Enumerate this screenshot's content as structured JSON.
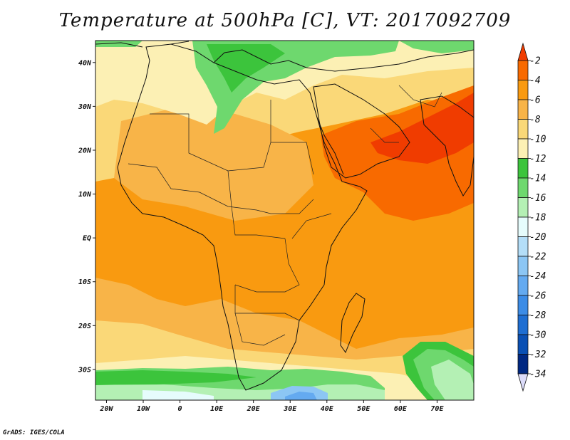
{
  "title": "Temperature at 500hPa [C], VT: 2017092709",
  "credit": "GrADS: IGES/COLA",
  "map": {
    "lon_range": [
      -23,
      80
    ],
    "lat_range": [
      -37,
      45
    ],
    "x_ticks": [
      {
        "value": -20,
        "label": "20W"
      },
      {
        "value": -10,
        "label": "10W"
      },
      {
        "value": 0,
        "label": "0"
      },
      {
        "value": 10,
        "label": "10E"
      },
      {
        "value": 20,
        "label": "20E"
      },
      {
        "value": 30,
        "label": "30E"
      },
      {
        "value": 40,
        "label": "40E"
      },
      {
        "value": 50,
        "label": "50E"
      },
      {
        "value": 60,
        "label": "60E"
      },
      {
        "value": 70,
        "label": "70E"
      }
    ],
    "y_ticks": [
      {
        "value": 40,
        "label": "40N"
      },
      {
        "value": 30,
        "label": "30N"
      },
      {
        "value": 20,
        "label": "20N"
      },
      {
        "value": 10,
        "label": "10N"
      },
      {
        "value": 0,
        "label": "EQ"
      },
      {
        "value": -10,
        "label": "10S"
      },
      {
        "value": -20,
        "label": "20S"
      },
      {
        "value": -30,
        "label": "30S"
      }
    ]
  },
  "colorbar": {
    "labels": [
      "-2",
      "-4",
      "-6",
      "-8",
      "-10",
      "-12",
      "-14",
      "-16",
      "-18",
      "-20",
      "-22",
      "-24",
      "-26",
      "-28",
      "-30",
      "-32",
      "-34"
    ],
    "colors": {
      "above_-2": "#f03c00",
      "-4_-2": "#f86a00",
      "-6_-4": "#f99a10",
      "-8_-6": "#f8b448",
      "-10_-8": "#fad878",
      "-12_-10": "#fcf0b4",
      "-14_-12": "#3cc43c",
      "-16_-14": "#6ed86e",
      "-18_-16": "#b4f0b4",
      "-20_-18": "#e6fcfc",
      "-22_-20": "#b4def8",
      "-24_-22": "#8cc6f4",
      "-26_-24": "#64aaf0",
      "-28_-26": "#3c8ce6",
      "-30_-28": "#1e6ed2",
      "-32_-30": "#0a50b4",
      "-34_-32": "#002882",
      "below_-34": "#dcdcfa"
    }
  }
}
